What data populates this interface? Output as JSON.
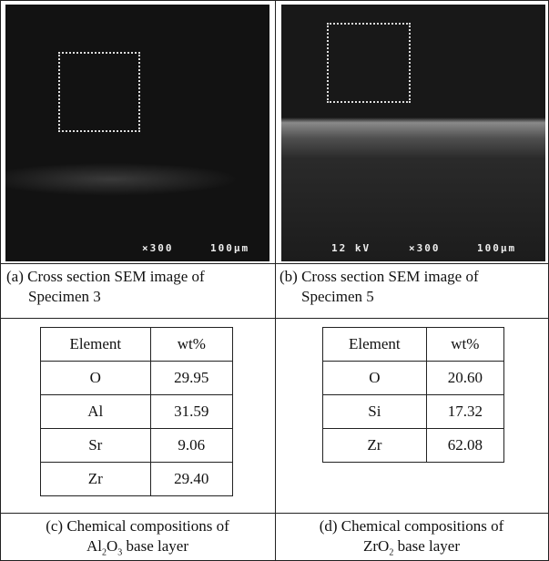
{
  "images": [
    {
      "labels": [
        "×300",
        "100μm"
      ],
      "caption": "(a) Cross section SEM image of Specimen 3"
    },
    {
      "labels": [
        "12 kV",
        "×300",
        "100μm"
      ],
      "caption": "(b) Cross section SEM image of Specimen 5"
    }
  ],
  "tables": [
    {
      "header": [
        "Element",
        "wt%"
      ],
      "rows": [
        [
          "O",
          "29.95"
        ],
        [
          "Al",
          "31.59"
        ],
        [
          "Sr",
          "9.06"
        ],
        [
          "Zr",
          "29.40"
        ]
      ],
      "caption": "(c) Chemical compositions of",
      "formula": [
        [
          "Al",
          "2"
        ],
        [
          "O",
          "3"
        ]
      ],
      "caption_end": "base layer"
    },
    {
      "header": [
        "Element",
        "wt%"
      ],
      "rows": [
        [
          "O",
          "20.60"
        ],
        [
          "Si",
          "17.32"
        ],
        [
          "Zr",
          "62.08"
        ]
      ],
      "caption": "(d) Chemical compositions of",
      "formula": [
        [
          "ZrO",
          "2"
        ]
      ],
      "caption_end": "base layer"
    }
  ]
}
